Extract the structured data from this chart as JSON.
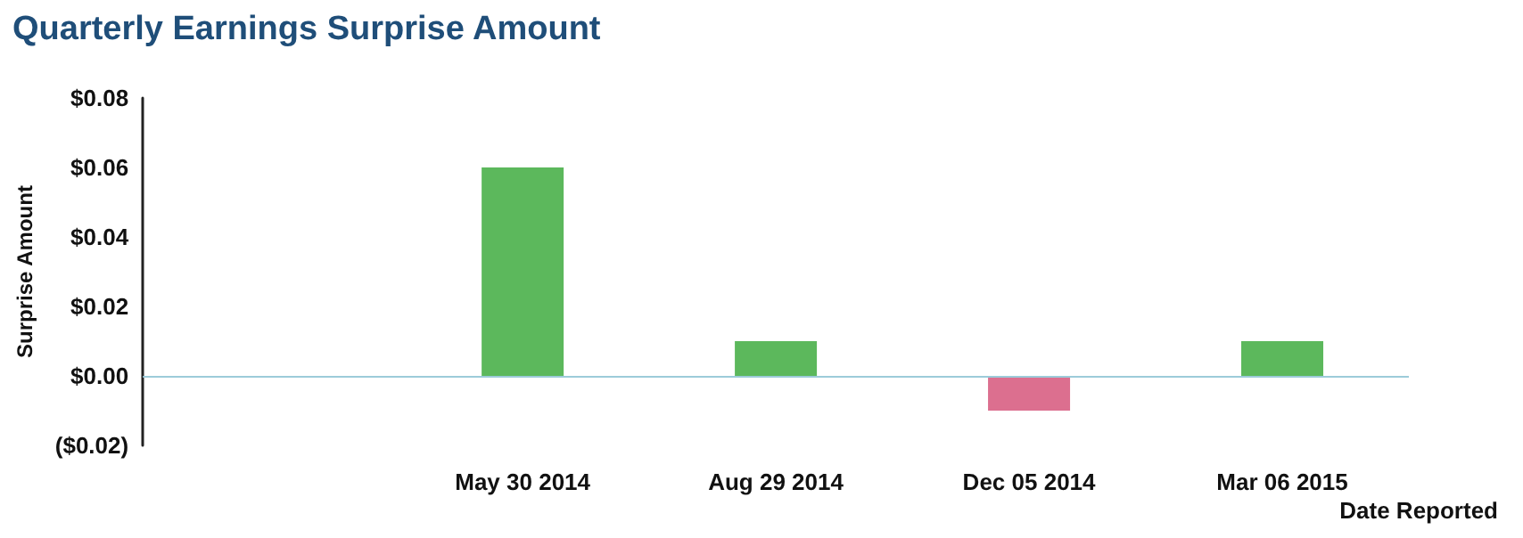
{
  "chart_data": {
    "type": "bar",
    "title": "Quarterly Earnings Surprise Amount",
    "xlabel": "Date Reported",
    "ylabel": "Surprise Amount",
    "categories": [
      null,
      "May 30 2014",
      "Aug 29 2014",
      "Dec 05 2014",
      "Mar 06 2015"
    ],
    "values": [
      null,
      0.06,
      0.01,
      -0.01,
      0.01
    ],
    "colors": [
      "#5cb85c",
      "#5cb85c",
      "#5cb85c",
      "#dc6f8f",
      "#5cb85c"
    ],
    "ylim": [
      -0.02,
      0.08
    ],
    "yticks": [
      {
        "value": -0.02,
        "label": "($0.02)"
      },
      {
        "value": 0,
        "label": "$0.00"
      },
      {
        "value": 0.02,
        "label": "$0.02"
      },
      {
        "value": 0.04,
        "label": "$0.04"
      },
      {
        "value": 0.06,
        "label": "$0.06"
      },
      {
        "value": 0.08,
        "label": "$0.08"
      }
    ],
    "ref_lines": [
      {
        "axis": "y",
        "value": 0,
        "color": "#9ccbd9"
      }
    ]
  }
}
